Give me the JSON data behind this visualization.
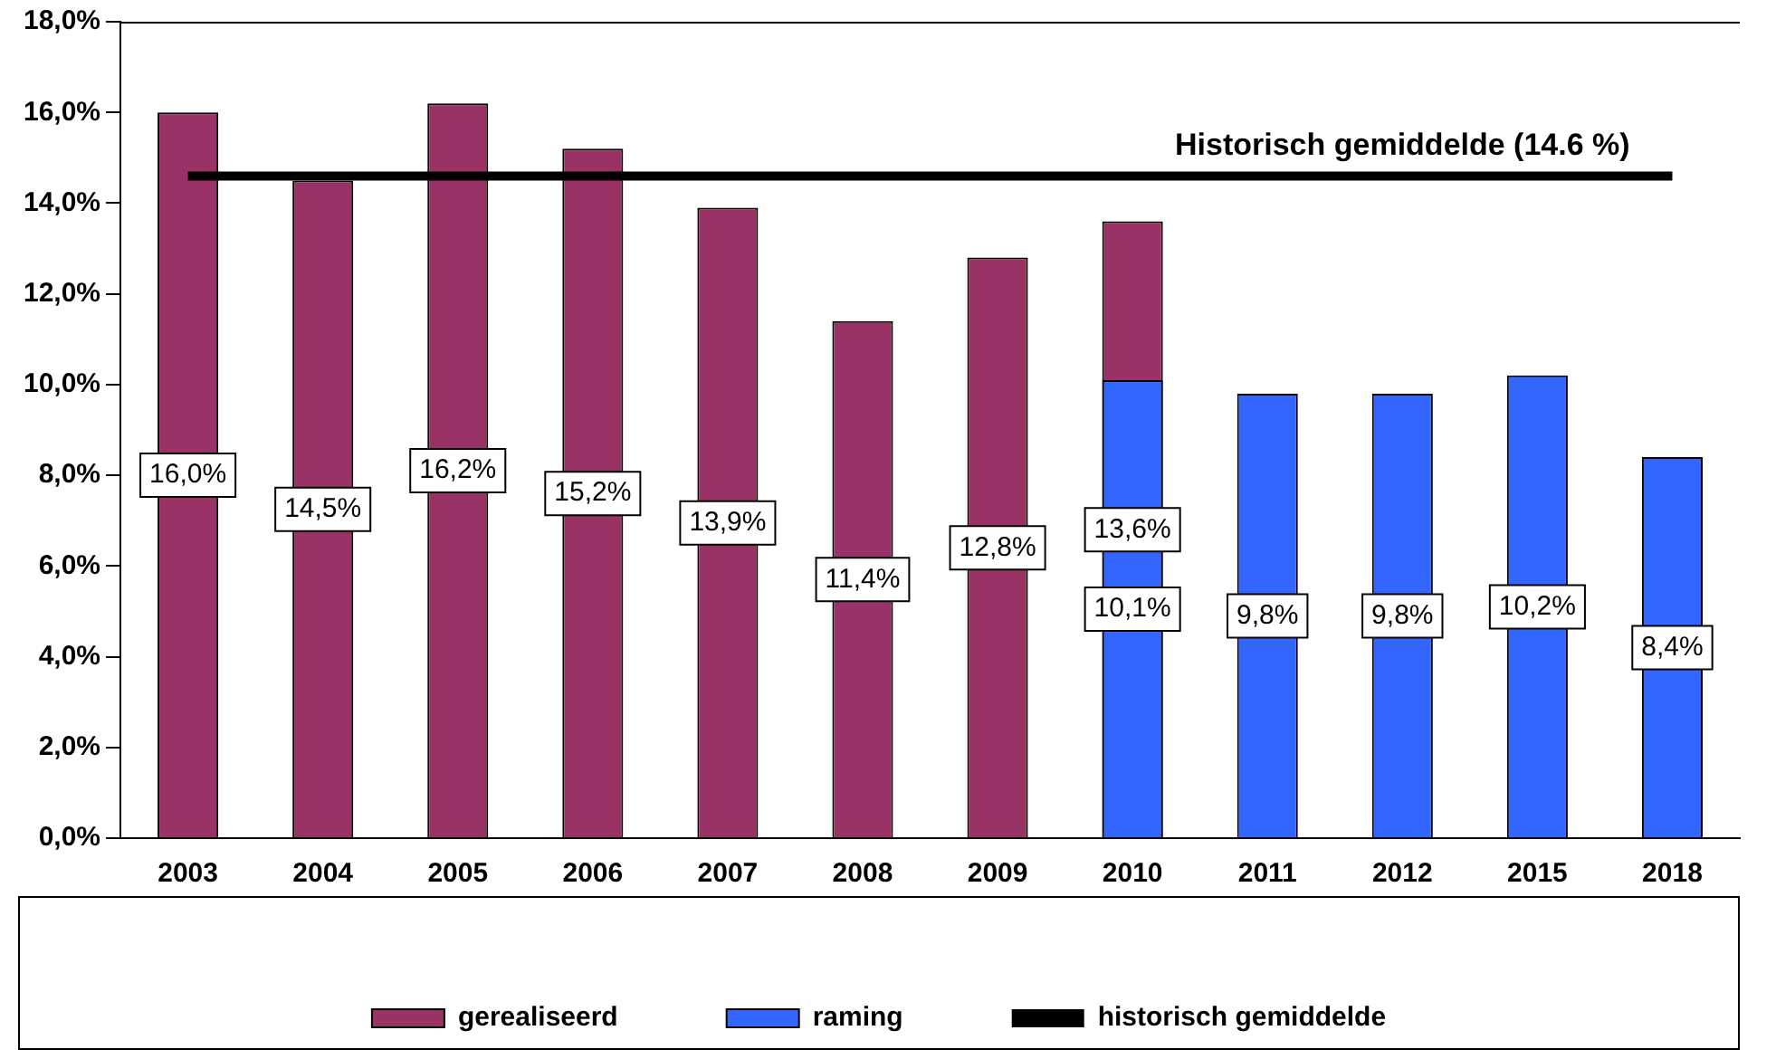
{
  "chart_data": {
    "type": "bar",
    "categories": [
      "2003",
      "2004",
      "2005",
      "2006",
      "2007",
      "2008",
      "2009",
      "2010",
      "2011",
      "2012",
      "2015",
      "2018"
    ],
    "series": [
      {
        "name": "gerealiseerd",
        "color": "#993366",
        "values": [
          16.0,
          14.5,
          16.2,
          15.2,
          13.9,
          11.4,
          12.8,
          13.6,
          null,
          null,
          null,
          null
        ],
        "value_labels": [
          "16,0%",
          "14,5%",
          "16,2%",
          "15,2%",
          "13,9%",
          "11,4%",
          "12,8%",
          "13,6%",
          null,
          null,
          null,
          null
        ]
      },
      {
        "name": "raming",
        "color": "#3366ff",
        "values": [
          null,
          null,
          null,
          null,
          null,
          null,
          null,
          10.1,
          9.8,
          9.8,
          10.2,
          8.4
        ],
        "value_labels": [
          null,
          null,
          null,
          null,
          null,
          null,
          null,
          "10,1%",
          "9,8%",
          "9,8%",
          "10,2%",
          "8,4%"
        ]
      },
      {
        "name": "historisch gemiddelde",
        "type": "line",
        "color": "#000000",
        "values": [
          14.6,
          14.6,
          14.6,
          14.6,
          14.6,
          14.6,
          14.6,
          14.6,
          14.6,
          14.6,
          14.6,
          14.6
        ]
      }
    ],
    "annotations": [
      {
        "text": "Historisch gemiddelde (14.6 %)",
        "x": "2012",
        "y": 14.6
      }
    ],
    "ylim": [
      0,
      18
    ],
    "yticks": [
      {
        "value": 0,
        "label": "0,0%"
      },
      {
        "value": 2,
        "label": "2,0%"
      },
      {
        "value": 4,
        "label": "4,0%"
      },
      {
        "value": 6,
        "label": "6,0%"
      },
      {
        "value": 8,
        "label": "8,0%"
      },
      {
        "value": 10,
        "label": "10,0%"
      },
      {
        "value": 12,
        "label": "12,0%"
      },
      {
        "value": 14,
        "label": "14,0%"
      },
      {
        "value": 16,
        "label": "16,0%"
      },
      {
        "value": 18,
        "label": "18,0%"
      }
    ],
    "grid": false,
    "legend": "bottom",
    "marker": "none"
  }
}
